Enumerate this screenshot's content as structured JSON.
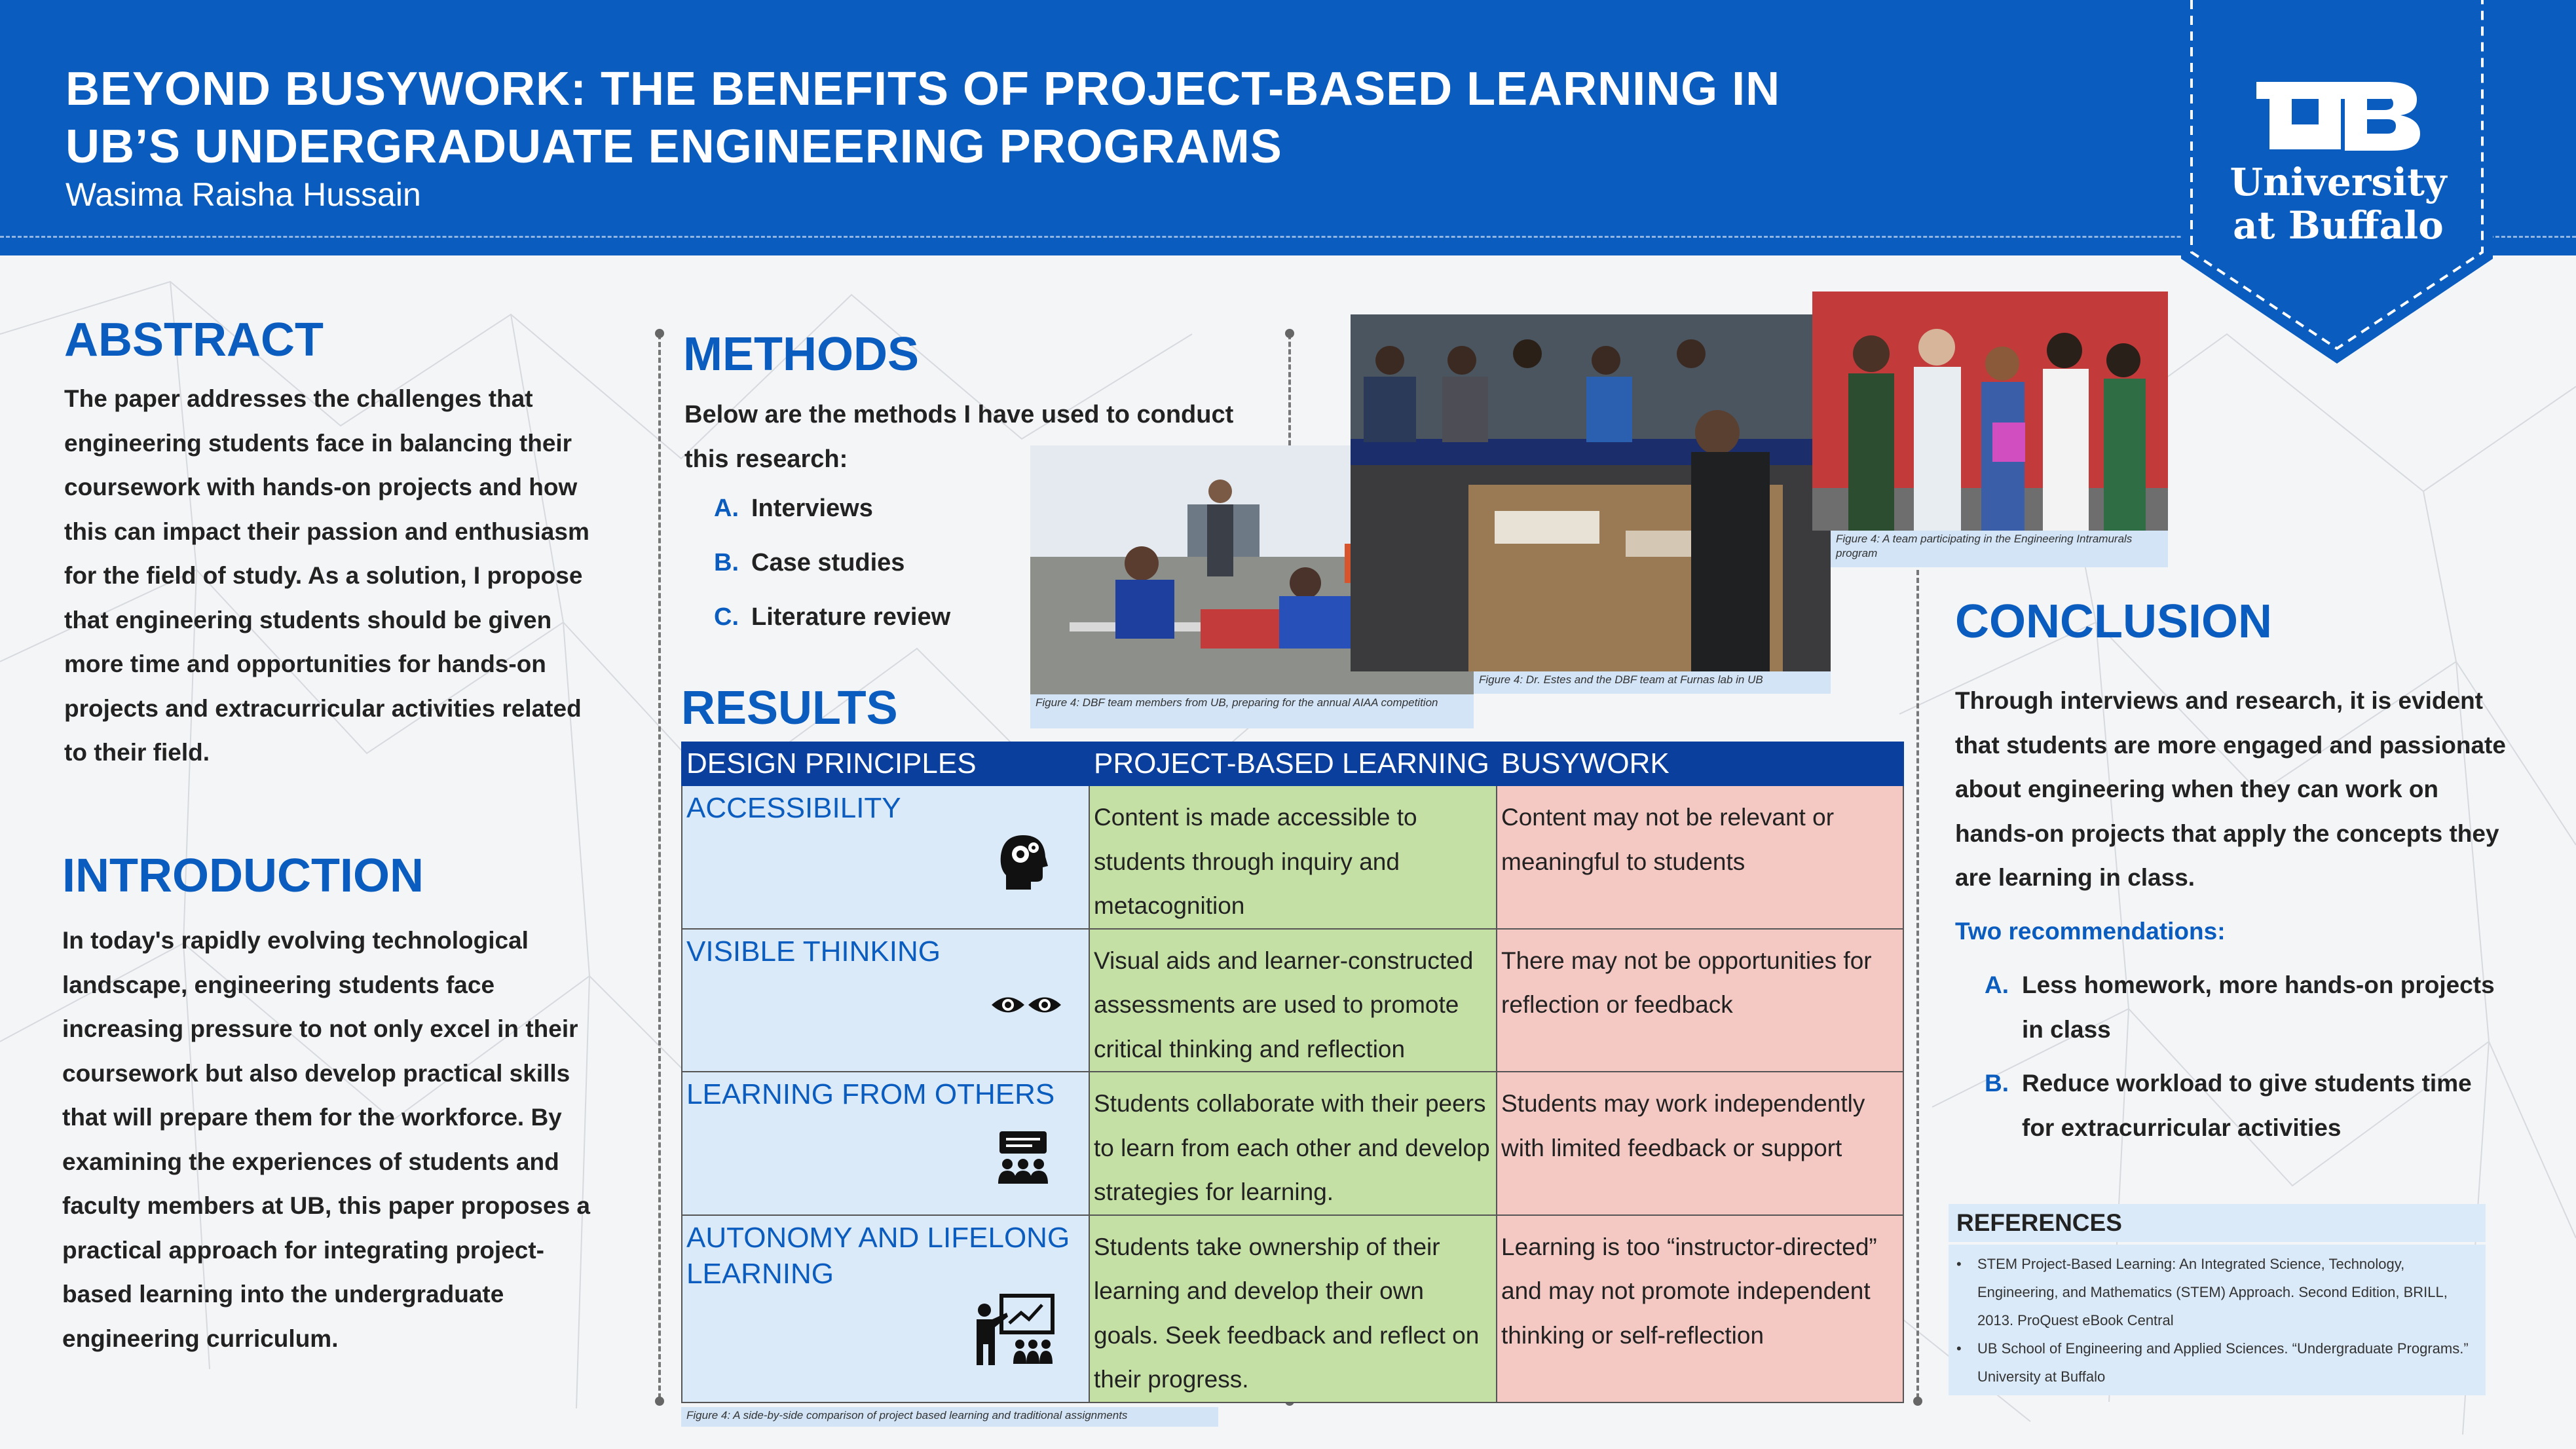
{
  "header": {
    "title": "BEYOND BUSYWORK: THE BENEFITS OF PROJECT-BASED LEARNING IN UB’S UNDERGRADUATE ENGINEERING PROGRAMS",
    "author": "Wasima Raisha Hussain",
    "logo_line1": "University",
    "logo_line2": "at Buffalo"
  },
  "abstract": {
    "heading": "ABSTRACT",
    "text": "The paper addresses the challenges that engineering students face in balancing their coursework with hands-on projects and how this can impact their passion and enthusiasm for the field of study. As a solution, I propose that engineering students should be given more time and opportunities for hands-on projects and extracurricular activities related to their field."
  },
  "introduction": {
    "heading": "INTRODUCTION",
    "text": "In today's rapidly evolving technological landscape, engineering students face increasing pressure to not only excel in their coursework but also develop practical skills that will prepare them for the workforce. By examining the experiences of students and faculty members at UB, this paper proposes a practical approach for integrating project-based learning into the undergraduate engineering curriculum."
  },
  "methods": {
    "heading": "METHODS",
    "intro": "Below are the methods I have used to conduct this research:",
    "items": [
      {
        "letter": "A.",
        "text": "Interviews"
      },
      {
        "letter": "B.",
        "text": "Case studies"
      },
      {
        "letter": "C.",
        "text": "Literature review"
      }
    ]
  },
  "figures": {
    "fig1_caption": "Figure 4: DBF team members from UB, preparing for the annual AIAA competition",
    "fig2_caption": "Figure 4: Dr. Estes and the DBF team at Furnas lab in UB",
    "fig3_caption": "Figure 4: A team participating in the Engineering Intramurals program",
    "table_caption": "Figure 4: A side-by-side comparison of project based learning and traditional assignments"
  },
  "results": {
    "heading": "RESULTS",
    "columns": [
      "DESIGN PRINCIPLES",
      "PROJECT-BASED LEARNING",
      "BUSYWORK"
    ],
    "rows": [
      {
        "principle": "ACCESSIBILITY",
        "icon": "head-gears-icon",
        "pbl": "Content is made accessible to students through inquiry and metacognition",
        "busywork": "Content may not be relevant or meaningful to students"
      },
      {
        "principle": "VISIBLE THINKING",
        "icon": "eyes-icon",
        "pbl": "Visual aids and learner-constructed assessments are used to promote critical thinking and reflection",
        "busywork": "There may not be opportunities for reflection or feedback"
      },
      {
        "principle": "LEARNING FROM OTHERS",
        "icon": "group-discussion-icon",
        "pbl": "Students collaborate with their peers to learn from each other and develop strategies for learning.",
        "busywork": "Students may work independently with limited feedback or support"
      },
      {
        "principle": "AUTONOMY AND LIFELONG LEARNING",
        "icon": "teacher-board-icon",
        "pbl": "Students take ownership of their learning and develop their own goals. Seek feedback and reflect on their progress.",
        "busywork": "Learning is too “instructor-directed” and may not promote independent thinking or self-reflection"
      }
    ]
  },
  "conclusion": {
    "heading": "CONCLUSION",
    "text": "Through interviews and research, it is evident that students are more engaged and passionate about engineering when they can work on hands-on projects that apply the concepts they are learning in class.",
    "rec_heading": "Two recommendations:",
    "recommendations": [
      {
        "letter": "A.",
        "text": "Less homework, more hands-on projects in class"
      },
      {
        "letter": "B.",
        "text": "Reduce workload to give students time for extracurricular activities"
      }
    ]
  },
  "references": {
    "heading": "REFERENCES",
    "items": [
      "STEM Project-Based Learning: An Integrated Science, Technology, Engineering, and Mathematics (STEM) Approach. Second Edition, BRILL, 2013. ProQuest eBook Central",
      "UB School of Engineering and Applied Sciences. “Undergraduate Programs.” University at Buffalo"
    ]
  },
  "colors": {
    "brand_blue": "#0a5cbf",
    "table_header": "#0a3f9e",
    "pbl_green": "#c5e0a5",
    "busywork_red": "#f5c9c3",
    "principle_blue": "#dbeaf8"
  }
}
